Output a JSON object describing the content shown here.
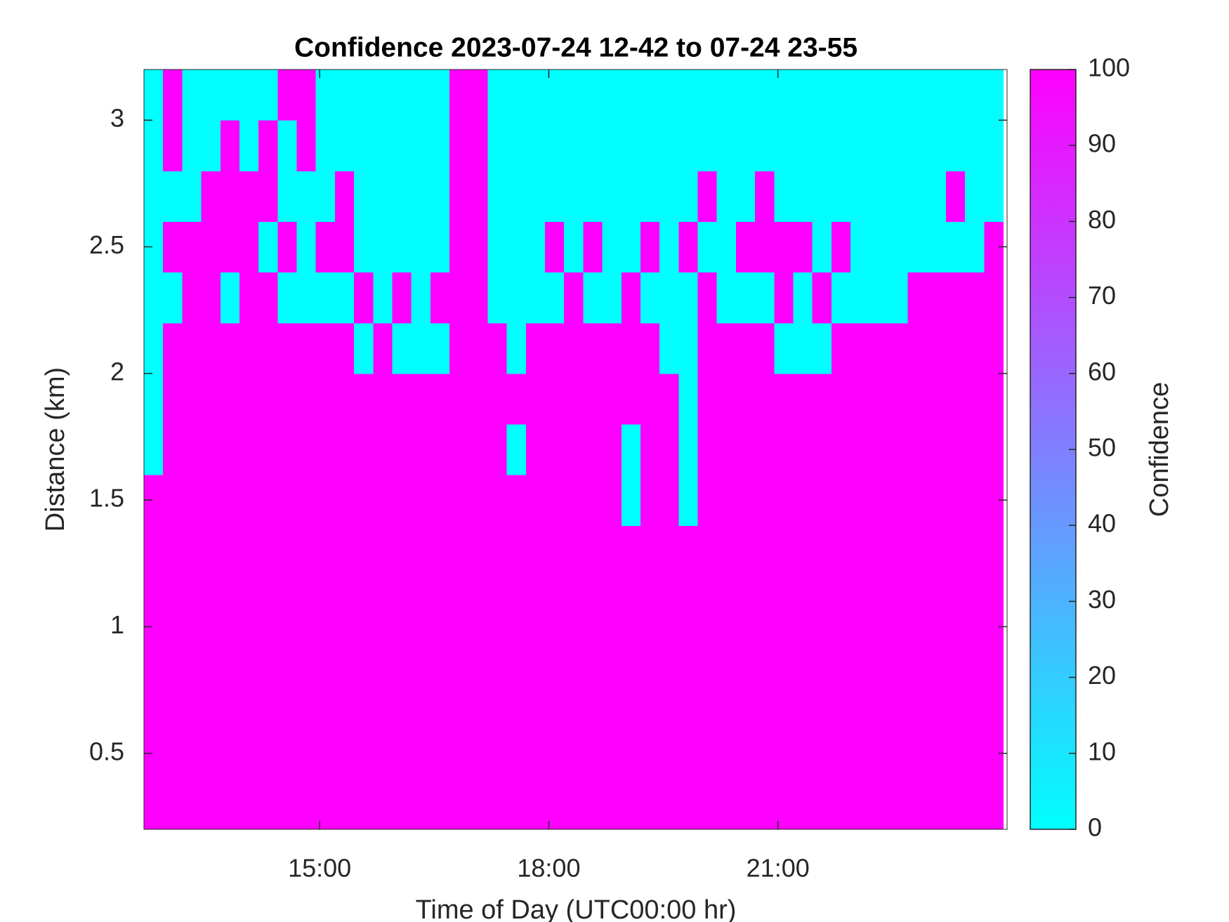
{
  "chart_data": {
    "type": "heatmap",
    "title": "Confidence 2023-07-24 12-42 to 07-24 23-55",
    "xlabel": "Time of Day (UTC00:00 hr)",
    "ylabel": "Distance (km)",
    "xlim": [
      12.7,
      24.0
    ],
    "ylim": [
      0.2,
      3.2
    ],
    "xticks": [
      {
        "value": 15,
        "label": "15:00"
      },
      {
        "value": 18,
        "label": "18:00"
      },
      {
        "value": 21,
        "label": "21:00"
      }
    ],
    "yticks": [
      0.5,
      1,
      1.5,
      2,
      2.5,
      3
    ],
    "colormap": [
      "#00ffff",
      "#ff00ff"
    ],
    "colorbar": {
      "label": "Confidence",
      "clim": [
        0,
        100
      ],
      "ticks": [
        0,
        10,
        20,
        30,
        40,
        50,
        60,
        70,
        80,
        90,
        100
      ]
    },
    "x": [
      12.825,
      13.075,
      13.325,
      13.575,
      13.825,
      14.075,
      14.325,
      14.575,
      14.825,
      15.075,
      15.325,
      15.575,
      15.825,
      16.075,
      16.325,
      16.575,
      16.825,
      17.075,
      17.325,
      17.575,
      17.825,
      18.075,
      18.325,
      18.575,
      18.825,
      19.075,
      19.325,
      19.575,
      19.825,
      20.075,
      20.325,
      20.575,
      20.825,
      21.075,
      21.325,
      21.575,
      21.825,
      22.075,
      22.325,
      22.575,
      22.825,
      23.075,
      23.325,
      23.575,
      23.825
    ],
    "y": [
      0.3,
      0.5,
      0.7,
      0.9,
      1.1,
      1.3,
      1.5,
      1.7,
      1.9,
      2.1,
      2.3,
      2.5,
      2.7,
      2.9,
      3.1
    ],
    "z": [
      [
        100,
        100,
        100,
        100,
        100,
        100,
        100,
        100,
        100,
        100,
        100,
        100,
        100,
        100,
        100,
        100,
        100,
        100,
        100,
        100,
        100,
        100,
        100,
        100,
        100,
        100,
        100,
        100,
        100,
        100,
        100,
        100,
        100,
        100,
        100,
        100,
        100,
        100,
        100,
        100,
        100,
        100,
        100,
        100,
        100
      ],
      [
        100,
        100,
        100,
        100,
        100,
        100,
        100,
        100,
        100,
        100,
        100,
        100,
        100,
        100,
        100,
        100,
        100,
        100,
        100,
        100,
        100,
        100,
        100,
        100,
        100,
        100,
        100,
        100,
        100,
        100,
        100,
        100,
        100,
        100,
        100,
        100,
        100,
        100,
        100,
        100,
        100,
        100,
        100,
        100,
        100
      ],
      [
        100,
        100,
        100,
        100,
        100,
        100,
        100,
        100,
        100,
        100,
        100,
        100,
        100,
        100,
        100,
        100,
        100,
        100,
        100,
        100,
        100,
        100,
        100,
        100,
        100,
        100,
        100,
        100,
        100,
        100,
        100,
        100,
        100,
        100,
        100,
        100,
        100,
        100,
        100,
        100,
        100,
        100,
        100,
        100,
        100
      ],
      [
        100,
        100,
        100,
        100,
        100,
        100,
        100,
        100,
        100,
        100,
        100,
        100,
        100,
        100,
        100,
        100,
        100,
        100,
        100,
        100,
        100,
        100,
        100,
        100,
        100,
        100,
        100,
        100,
        100,
        100,
        100,
        100,
        100,
        100,
        100,
        100,
        100,
        100,
        100,
        100,
        100,
        100,
        100,
        100,
        100
      ],
      [
        100,
        100,
        100,
        100,
        100,
        100,
        100,
        100,
        100,
        100,
        100,
        100,
        100,
        100,
        100,
        100,
        100,
        100,
        100,
        100,
        100,
        100,
        100,
        100,
        100,
        100,
        100,
        100,
        100,
        100,
        100,
        100,
        100,
        100,
        100,
        100,
        100,
        100,
        100,
        100,
        100,
        100,
        100,
        100,
        100
      ],
      [
        100,
        100,
        100,
        100,
        100,
        100,
        100,
        100,
        100,
        100,
        100,
        100,
        100,
        100,
        100,
        100,
        100,
        100,
        100,
        100,
        100,
        100,
        100,
        100,
        100,
        100,
        100,
        100,
        100,
        100,
        100,
        100,
        100,
        100,
        100,
        100,
        100,
        100,
        100,
        100,
        100,
        100,
        100,
        100,
        100
      ],
      [
        100,
        100,
        100,
        100,
        100,
        100,
        100,
        100,
        100,
        100,
        100,
        100,
        100,
        100,
        100,
        100,
        100,
        100,
        100,
        100,
        100,
        100,
        100,
        100,
        100,
        0,
        100,
        100,
        0,
        100,
        100,
        100,
        100,
        100,
        100,
        100,
        100,
        100,
        100,
        100,
        100,
        100,
        100,
        100,
        100
      ],
      [
        0,
        100,
        100,
        100,
        100,
        100,
        100,
        100,
        100,
        100,
        100,
        100,
        100,
        100,
        100,
        100,
        100,
        100,
        100,
        0,
        100,
        100,
        100,
        100,
        100,
        0,
        100,
        100,
        0,
        100,
        100,
        100,
        100,
        100,
        100,
        100,
        100,
        100,
        100,
        100,
        100,
        100,
        100,
        100,
        100
      ],
      [
        0,
        100,
        100,
        100,
        100,
        100,
        100,
        100,
        100,
        100,
        100,
        100,
        100,
        100,
        100,
        100,
        100,
        100,
        100,
        100,
        100,
        100,
        100,
        100,
        100,
        100,
        100,
        100,
        0,
        100,
        100,
        100,
        100,
        100,
        100,
        100,
        100,
        100,
        100,
        100,
        100,
        100,
        100,
        100,
        100
      ],
      [
        0,
        100,
        100,
        100,
        100,
        100,
        100,
        100,
        100,
        100,
        100,
        0,
        100,
        0,
        0,
        0,
        100,
        100,
        100,
        0,
        100,
        100,
        100,
        100,
        100,
        100,
        100,
        0,
        0,
        100,
        100,
        100,
        100,
        0,
        0,
        0,
        100,
        100,
        100,
        100,
        100,
        100,
        100,
        100,
        100
      ],
      [
        0,
        0,
        100,
        100,
        0,
        100,
        100,
        0,
        0,
        0,
        0,
        100,
        0,
        100,
        0,
        100,
        100,
        100,
        0,
        0,
        0,
        0,
        100,
        0,
        0,
        100,
        0,
        0,
        0,
        100,
        0,
        0,
        0,
        100,
        0,
        100,
        0,
        0,
        0,
        0,
        100,
        100,
        100,
        100,
        100
      ],
      [
        0,
        100,
        100,
        100,
        100,
        100,
        0,
        100,
        0,
        100,
        100,
        0,
        0,
        0,
        0,
        0,
        100,
        100,
        0,
        0,
        0,
        100,
        0,
        100,
        0,
        0,
        100,
        0,
        100,
        0,
        0,
        100,
        100,
        100,
        100,
        0,
        100,
        0,
        0,
        0,
        0,
        0,
        0,
        0,
        100
      ],
      [
        0,
        0,
        0,
        100,
        100,
        100,
        100,
        0,
        0,
        0,
        100,
        0,
        0,
        0,
        0,
        0,
        100,
        100,
        0,
        0,
        0,
        0,
        0,
        0,
        0,
        0,
        0,
        0,
        0,
        100,
        0,
        0,
        100,
        0,
        0,
        0,
        0,
        0,
        0,
        0,
        0,
        0,
        100,
        0,
        0
      ],
      [
        0,
        100,
        0,
        0,
        100,
        0,
        100,
        0,
        100,
        0,
        0,
        0,
        0,
        0,
        0,
        0,
        100,
        100,
        0,
        0,
        0,
        0,
        0,
        0,
        0,
        0,
        0,
        0,
        0,
        0,
        0,
        0,
        0,
        0,
        0,
        0,
        0,
        0,
        0,
        0,
        0,
        0,
        0,
        0,
        0
      ],
      [
        0,
        100,
        0,
        0,
        0,
        0,
        0,
        100,
        100,
        0,
        0,
        0,
        0,
        0,
        0,
        0,
        100,
        100,
        0,
        0,
        0,
        0,
        0,
        0,
        0,
        0,
        0,
        0,
        0,
        0,
        0,
        0,
        0,
        0,
        0,
        0,
        0,
        0,
        0,
        0,
        0,
        0,
        0,
        0,
        0
      ]
    ]
  }
}
